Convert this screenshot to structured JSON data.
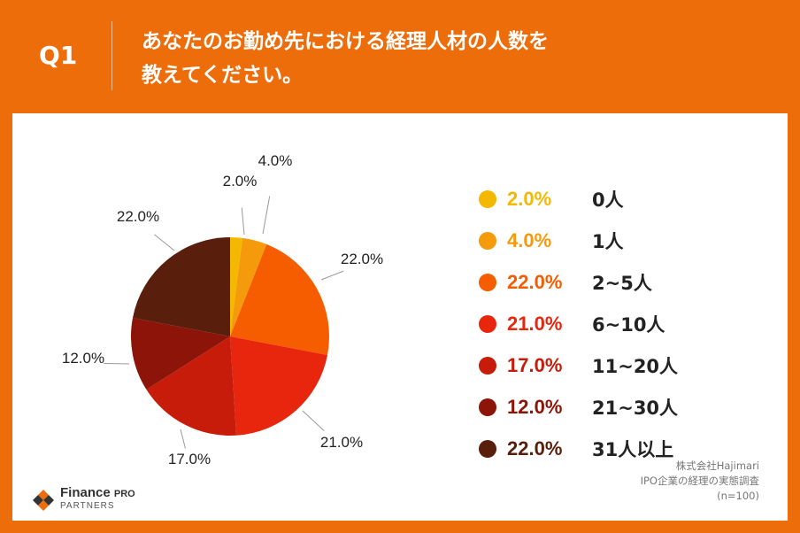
{
  "header": {
    "question": "Q1",
    "title_line1": "あなたのお勤め先における経理人材の人数を",
    "title_line2": "教えてください。"
  },
  "chart_data": {
    "type": "pie",
    "categories": [
      "0人",
      "1人",
      "2~5人",
      "6~10人",
      "11~20人",
      "21~30人",
      "31人以上"
    ],
    "values": [
      2.0,
      4.0,
      22.0,
      21.0,
      17.0,
      12.0,
      22.0
    ],
    "value_labels": [
      "2.0%",
      "4.0%",
      "22.0%",
      "21.0%",
      "17.0%",
      "12.0%",
      "22.0%"
    ],
    "colors": [
      "#f5b800",
      "#f59a0a",
      "#f65c00",
      "#e8260d",
      "#c71c0a",
      "#8c1408",
      "#5a1e0c"
    ],
    "legend_placement": "right"
  },
  "legend": {
    "items": [
      {
        "pct": "2.0%",
        "label": "0人",
        "color": "#f5b800"
      },
      {
        "pct": "4.0%",
        "label": "1人",
        "color": "#f59a0a"
      },
      {
        "pct": "22.0%",
        "label": "2~5人",
        "color": "#f65c00"
      },
      {
        "pct": "21.0%",
        "label": "6~10人",
        "color": "#e8260d"
      },
      {
        "pct": "17.0%",
        "label": "11~20人",
        "color": "#c71c0a"
      },
      {
        "pct": "12.0%",
        "label": "21~30人",
        "color": "#8c1408"
      },
      {
        "pct": "22.0%",
        "label": "31人以上",
        "color": "#5a1e0c"
      }
    ]
  },
  "source": {
    "company": "株式会社Hajimari",
    "survey": "IPO企業の経理の実態調査",
    "sample": "(n=100)"
  },
  "logo": {
    "name": "Finance",
    "pro": "PRO",
    "sub": "PARTNERS"
  },
  "colors": {
    "background": "#ee6d0b",
    "panel": "#ffffff"
  }
}
